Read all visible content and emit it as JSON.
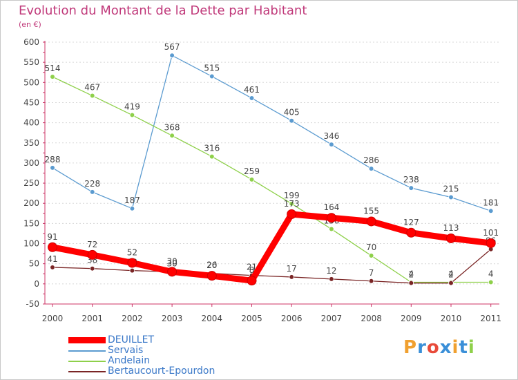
{
  "header": {
    "title": "Evolution du Montant de la Dette par Habitant",
    "unit": "(en €)"
  },
  "chart_data": {
    "type": "line",
    "title": "Evolution du Montant de la Dette par Habitant",
    "ylabel": "(en €)",
    "xlabel": "",
    "x": [
      "2000",
      "2001",
      "2002",
      "2003",
      "2004",
      "2005",
      "2006",
      "2007",
      "2008",
      "2009",
      "2010",
      "2011"
    ],
    "ylim": [
      -50,
      600
    ],
    "yticks": [
      -50,
      0,
      50,
      100,
      150,
      200,
      250,
      300,
      350,
      400,
      450,
      500,
      550,
      600
    ],
    "grid": "horizontal dotted",
    "legend_position": "bottom-left",
    "series": [
      {
        "name": "Servais",
        "color": "#5b9bd0",
        "values": [
          288,
          228,
          187,
          567,
          515,
          461,
          405,
          346,
          286,
          238,
          215,
          181
        ]
      },
      {
        "name": "Andelain",
        "color": "#8ed04a",
        "values": [
          514,
          467,
          419,
          368,
          316,
          259,
          199,
          136,
          70,
          4,
          4,
          4
        ]
      },
      {
        "name": "Bertaucourt-Epourdon",
        "color": "#7a2525",
        "values": [
          41,
          38,
          33,
          30,
          26,
          21,
          17,
          12,
          7,
          2,
          2,
          86
        ]
      },
      {
        "name": "DEUILLET",
        "color": "#ff0000",
        "values": [
          91,
          72,
          52,
          30,
          20,
          8,
          173,
          164,
          155,
          127,
          113,
          101
        ]
      }
    ],
    "data_labels": [
      {
        "series": "Servais",
        "labels": [
          "288",
          "228",
          "187",
          "567",
          "515",
          "461",
          "405",
          "346",
          "286",
          "238",
          "215",
          "181"
        ]
      },
      {
        "series": "Andelain",
        "labels": [
          "514",
          "467",
          "419",
          "368",
          "316",
          "259",
          "199",
          "136",
          "70",
          "4",
          "4",
          "4"
        ]
      },
      {
        "series": "Bertaucourt-Epourdon",
        "labels": [
          "41",
          "38",
          "33",
          "30",
          "26",
          "21",
          "17",
          "12",
          "7",
          "2",
          "2",
          "86"
        ]
      },
      {
        "series": "DEUILLET",
        "labels": [
          "91",
          "72",
          "52",
          "30",
          "20",
          "8",
          "173",
          "164",
          "155",
          "127",
          "113",
          "101"
        ]
      }
    ]
  },
  "legend": {
    "items": [
      {
        "name": "DEUILLET",
        "color": "#ff0000",
        "thick": true
      },
      {
        "name": "Servais",
        "color": "#5b9bd0",
        "thick": false
      },
      {
        "name": "Andelain",
        "color": "#8ed04a",
        "thick": false
      },
      {
        "name": "Bertaucourt-Epourdon",
        "color": "#7a2525",
        "thick": false
      }
    ]
  },
  "logo": {
    "text": "Proxiti",
    "colors": [
      "#f0a030",
      "#3a8fd8",
      "#e84a3a",
      "#3a8fd8",
      "#f0a030",
      "#3a8fd8",
      "#8ed04a"
    ]
  }
}
